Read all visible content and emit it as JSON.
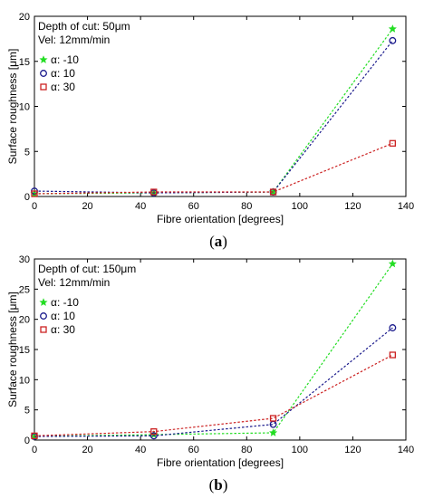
{
  "chart_data": [
    {
      "type": "line",
      "annotations": [
        "Depth of cut: 50μm",
        "Vel: 12mm/min"
      ],
      "xlabel": "Fibre orientation [degrees]",
      "ylabel": "Surface roughness [μm]",
      "xlim": [
        0,
        140
      ],
      "ylim": [
        0,
        20
      ],
      "xticks": [
        "0",
        "20",
        "40",
        "60",
        "80",
        "100",
        "120",
        "140"
      ],
      "yticks": [
        "0",
        "5",
        "10",
        "15",
        "20"
      ],
      "x": [
        0,
        45,
        90,
        135
      ],
      "legend_position": "top-left",
      "series": [
        {
          "name": "α: -10",
          "values": [
            0.3,
            0.4,
            0.5,
            18.6
          ],
          "color": "#22dd22",
          "marker": "star"
        },
        {
          "name": "α: 10",
          "values": [
            0.6,
            0.4,
            0.5,
            17.3
          ],
          "color": "#1a1a8c",
          "marker": "circle"
        },
        {
          "name": "α: 30",
          "values": [
            0.3,
            0.5,
            0.5,
            5.9
          ],
          "color": "#cc2222",
          "marker": "square"
        }
      ],
      "caption": [
        "(",
        "a",
        ")"
      ]
    },
    {
      "type": "line",
      "annotations": [
        "Depth of cut: 150μm",
        "Vel: 12mm/min"
      ],
      "xlabel": "Fibre orientation [degrees]",
      "ylabel": "Surface roughness [μm]",
      "xlim": [
        0,
        140
      ],
      "ylim": [
        0,
        30
      ],
      "xticks": [
        "0",
        "20",
        "40",
        "60",
        "80",
        "100",
        "120",
        "140"
      ],
      "yticks": [
        "0",
        "5",
        "10",
        "15",
        "20",
        "25",
        "30"
      ],
      "x": [
        0,
        45,
        90,
        135
      ],
      "legend_position": "top-left",
      "series": [
        {
          "name": "α: -10",
          "values": [
            0.6,
            0.9,
            1.2,
            29.2
          ],
          "color": "#22dd22",
          "marker": "star"
        },
        {
          "name": "α: 10",
          "values": [
            0.6,
            0.7,
            2.6,
            18.6
          ],
          "color": "#1a1a8c",
          "marker": "circle"
        },
        {
          "name": "α: 30",
          "values": [
            0.7,
            1.4,
            3.6,
            14.1
          ],
          "color": "#cc2222",
          "marker": "square"
        }
      ],
      "caption": [
        "(",
        "b",
        ")"
      ]
    }
  ]
}
